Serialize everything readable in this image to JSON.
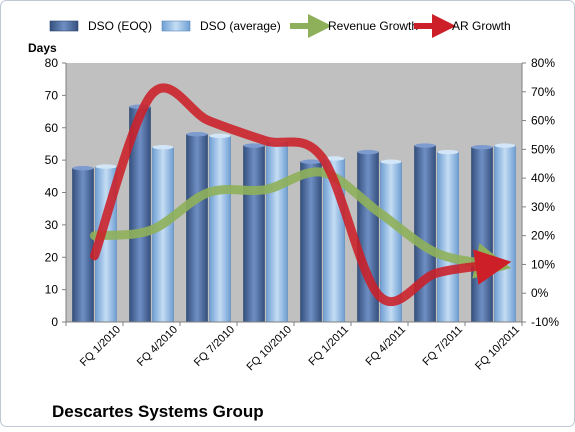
{
  "chart_data": {
    "type": "bar",
    "title": "Descartes Systems Group",
    "ylabel": "Days",
    "ylim": [
      0,
      80
    ],
    "y_ticks": [
      0,
      10,
      20,
      30,
      40,
      50,
      60,
      70,
      80
    ],
    "y2lim": [
      -0.1,
      0.8
    ],
    "y2_ticks": [
      -0.1,
      0.0,
      0.1,
      0.2,
      0.3,
      0.4,
      0.5,
      0.6,
      0.7,
      0.8
    ],
    "y2_tick_labels": [
      "-10%",
      "0%",
      "10%",
      "20%",
      "30%",
      "40%",
      "50%",
      "60%",
      "70%",
      "80%"
    ],
    "categories": [
      "FQ 1/2010",
      "FQ 4/2010",
      "FQ 7/2010",
      "FQ 10/2010",
      "FQ 1/2011",
      "FQ 4/2011",
      "FQ 7/2011",
      "FQ 10/2011"
    ],
    "legend_position": "top",
    "grid": false,
    "series": [
      {
        "name": "DSO (EOQ)",
        "kind": "bar",
        "axis": "left",
        "color": "#4f6fa3",
        "values": [
          47.5,
          66.5,
          58,
          54.5,
          49.5,
          52.5,
          54.5,
          54
        ]
      },
      {
        "name": "DSO (average)",
        "kind": "bar",
        "axis": "left",
        "color": "#9cc3ea",
        "values": [
          48,
          54,
          57.5,
          56,
          50.5,
          49.5,
          52.5,
          54.5
        ]
      },
      {
        "name": "Revenue Growth",
        "kind": "line",
        "axis": "right",
        "color": "#8fb05a",
        "values": [
          0.2,
          0.22,
          0.35,
          0.36,
          0.42,
          0.28,
          0.14,
          0.1
        ]
      },
      {
        "name": "AR Growth",
        "kind": "line",
        "axis": "right",
        "color": "#cc1f27",
        "values": [
          0.13,
          0.69,
          0.6,
          0.53,
          0.47,
          -0.01,
          0.07,
          0.1
        ]
      }
    ],
    "colors": {
      "plot_bg": "#c0c0c0",
      "frame": "#bfc8d4"
    }
  }
}
